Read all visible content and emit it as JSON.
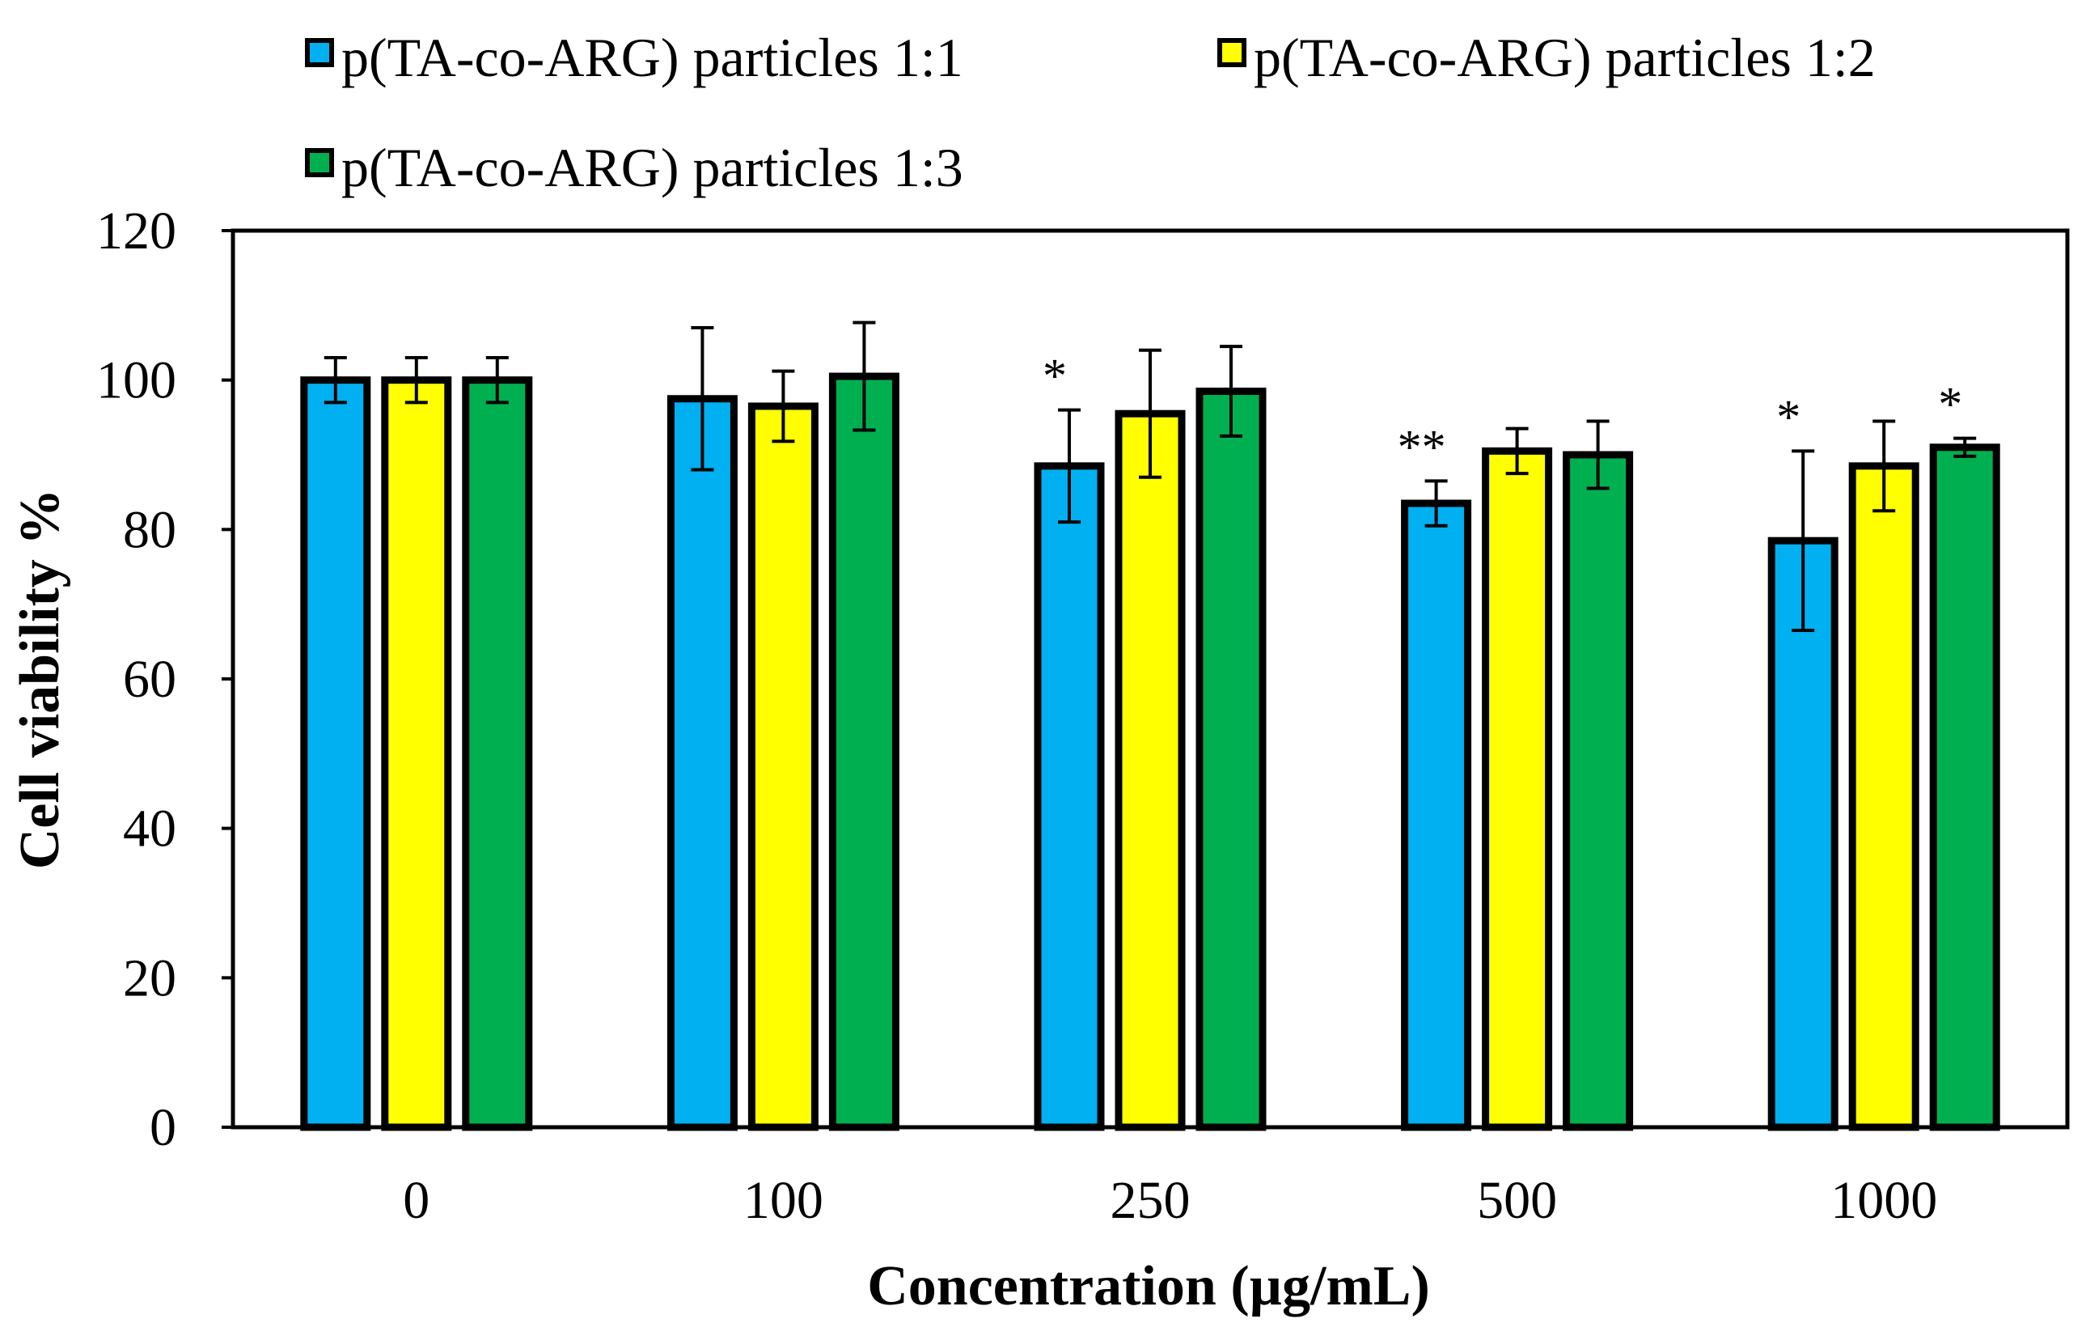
{
  "chart_data": {
    "type": "bar",
    "title": "",
    "xlabel": "Concentration (µg/mL)",
    "ylabel": "Cell viability %",
    "ylim": [
      0,
      120
    ],
    "yticks": [
      0,
      20,
      40,
      60,
      80,
      100,
      120
    ],
    "grid": false,
    "legend_position": "top",
    "categories": [
      "0",
      "100",
      "250",
      "500",
      "1000"
    ],
    "series": [
      {
        "name": "p(TA-co-ARG) particles 1:1",
        "color": "#00b0f0",
        "values": [
          100,
          97.5,
          88.5,
          83.5,
          78.5
        ],
        "errors": [
          3,
          9.5,
          7.5,
          3,
          12
        ],
        "significance": [
          "",
          "",
          "*",
          "**",
          "*"
        ]
      },
      {
        "name": "p(TA-co-ARG) particles 1:2",
        "color": "#ffff00",
        "values": [
          100,
          96.5,
          95.5,
          90.5,
          88.5
        ],
        "errors": [
          3,
          4.7,
          8.5,
          3,
          6
        ],
        "significance": [
          "",
          "",
          "",
          "",
          ""
        ]
      },
      {
        "name": "p(TA-co-ARG) particles 1:3",
        "color": "#00b050",
        "values": [
          100,
          100.5,
          98.5,
          90,
          91
        ],
        "errors": [
          3,
          7.2,
          6,
          4.5,
          1.2
        ],
        "significance": [
          "",
          "",
          "",
          "",
          "*"
        ]
      }
    ]
  }
}
